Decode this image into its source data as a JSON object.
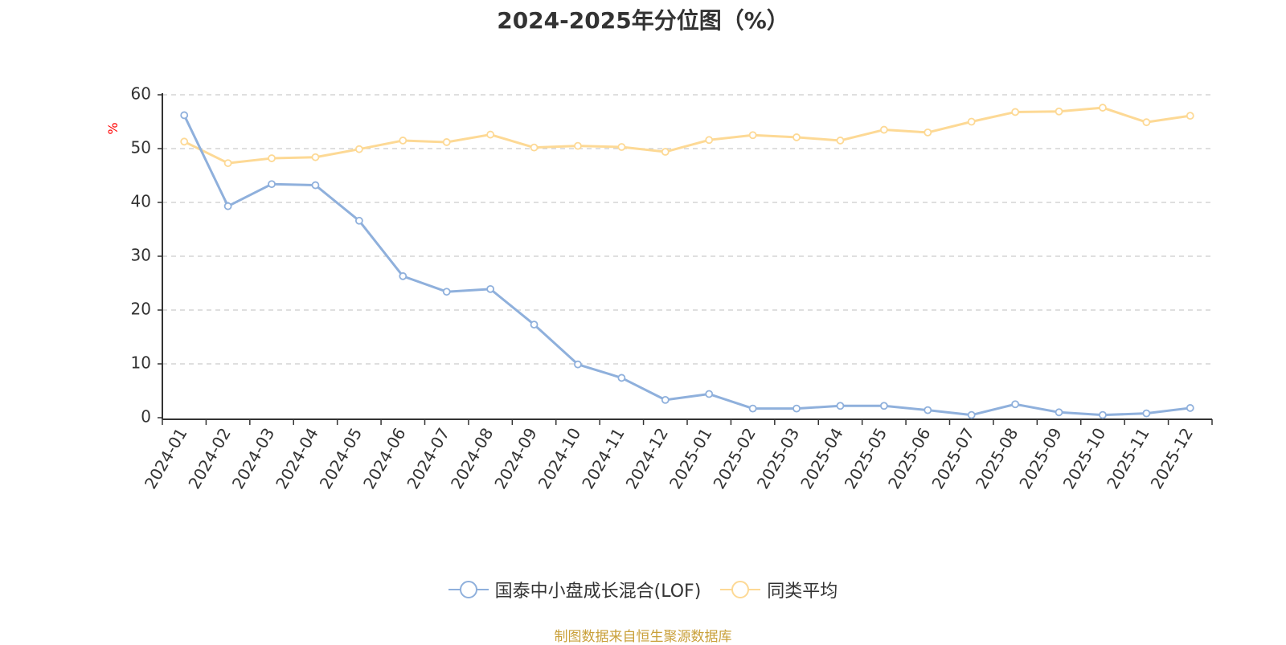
{
  "chart_data": {
    "type": "line",
    "title": "2024-2025年分位图（%）",
    "ylabel": "%",
    "xlabel": "",
    "ylim": [
      0,
      60
    ],
    "yticks": [
      0,
      10,
      20,
      30,
      40,
      50,
      60
    ],
    "grid": true,
    "legend_position": "bottom-center",
    "categories": [
      "2024-01",
      "2024-02",
      "2024-03",
      "2024-04",
      "2024-05",
      "2024-06",
      "2024-07",
      "2024-08",
      "2024-09",
      "2024-10",
      "2024-11",
      "2024-12",
      "2025-01",
      "2025-02",
      "2025-03",
      "2025-04",
      "2025-05",
      "2025-06",
      "2025-07",
      "2025-08",
      "2025-09",
      "2025-10",
      "2025-11",
      "2025-12"
    ],
    "series": [
      {
        "name": "国泰中小盘成长混合(LOF)",
        "color": "#8fb0dc",
        "values": [
          56.2,
          39.3,
          43.4,
          43.2,
          36.6,
          26.3,
          23.4,
          23.9,
          17.3,
          9.9,
          7.4,
          3.3,
          4.4,
          1.7,
          1.7,
          2.2,
          2.2,
          1.4,
          0.5,
          2.5,
          1.0,
          0.5,
          0.8,
          1.8
        ]
      },
      {
        "name": "同类平均",
        "color": "#fdd995",
        "values": [
          51.3,
          47.3,
          48.2,
          48.4,
          49.9,
          51.5,
          51.2,
          52.6,
          50.2,
          50.5,
          50.3,
          49.4,
          51.6,
          52.5,
          52.1,
          51.5,
          53.5,
          53.0,
          55.0,
          56.8,
          56.9,
          57.6,
          54.9,
          56.1
        ]
      }
    ]
  },
  "source_note": "制图数据来自恒生聚源数据库"
}
